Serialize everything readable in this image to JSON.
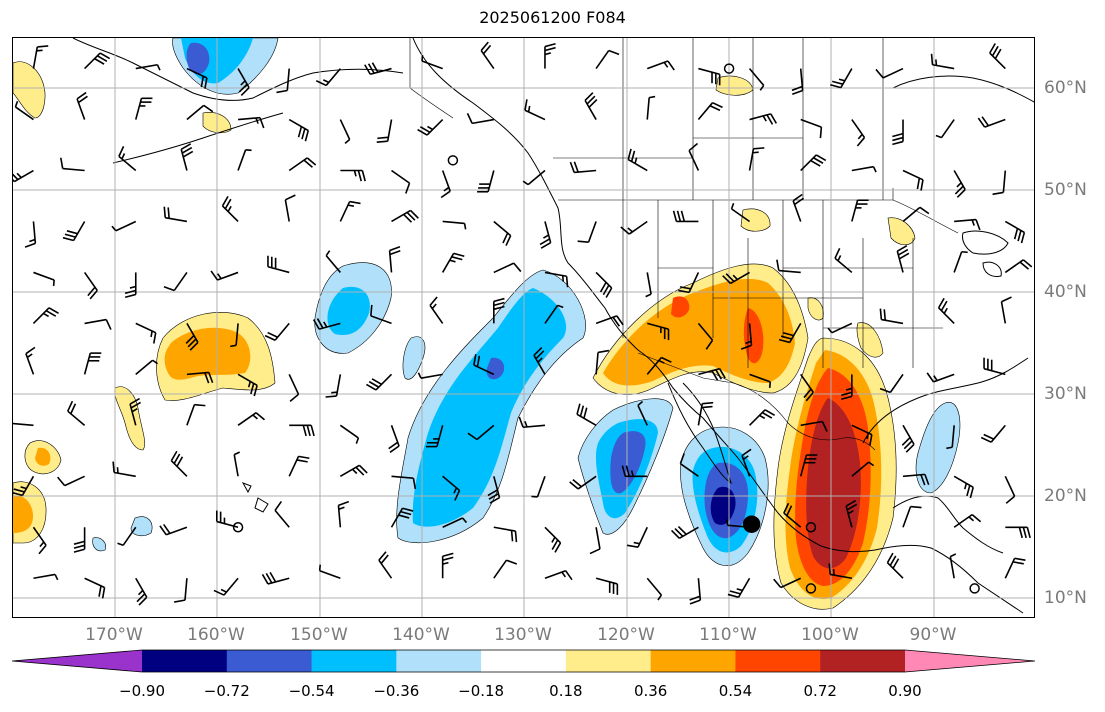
{
  "title": "2025061200 F084",
  "latitude_labels": [
    "60°N",
    "50°N",
    "40°N",
    "30°N",
    "20°N",
    "10°N"
  ],
  "longitude_labels": [
    "170°W",
    "160°W",
    "150°W",
    "140°W",
    "130°W",
    "120°W",
    "110°W",
    "100°W",
    "90°W"
  ],
  "colorbar": {
    "tick_labels": [
      "−0.90",
      "−0.72",
      "−0.54",
      "−0.36",
      "−0.18",
      "0.18",
      "0.36",
      "0.54",
      "0.72",
      "0.90"
    ],
    "colors": [
      "#9a33cc",
      "#000080",
      "#3a5bd1",
      "#00bfff",
      "#b0e0fa",
      "#ffffff",
      "#ffec8b",
      "#ffa500",
      "#ff4500",
      "#b22222",
      "#ff88b4"
    ]
  },
  "contour_colors": {
    "neg_090": "#000080",
    "neg_072": "#3a5bd1",
    "neg_054": "#00bfff",
    "neg_036": "#b0e0fa",
    "pos_036": "#ffec8b",
    "pos_054": "#ffa500",
    "pos_072": "#ff4500",
    "pos_090": "#b22222"
  },
  "map": {
    "projection": "PlateCarree",
    "extent_lon": [
      -180,
      -80
    ],
    "extent_lat": [
      8,
      65
    ],
    "gridlines": true,
    "gridline_color": "#b0b0b0"
  },
  "markers": [
    {
      "name": "filled-dot",
      "lon": -107.8,
      "lat": 17.3,
      "fill": "#000000"
    },
    {
      "name": "open-circle-1",
      "lon": -102,
      "lat": 17,
      "fill": "none"
    },
    {
      "name": "open-circle-2",
      "lon": -102,
      "lat": 11,
      "fill": "none"
    },
    {
      "name": "open-circle-3",
      "lon": -158,
      "lat": 17,
      "fill": "none"
    },
    {
      "name": "open-circle-4",
      "lon": -137,
      "lat": 53,
      "fill": "none"
    },
    {
      "name": "open-circle-5",
      "lon": -110,
      "lat": 62,
      "fill": "none"
    },
    {
      "name": "open-circle-6",
      "lon": -86,
      "lat": 11,
      "fill": "none"
    }
  ]
}
